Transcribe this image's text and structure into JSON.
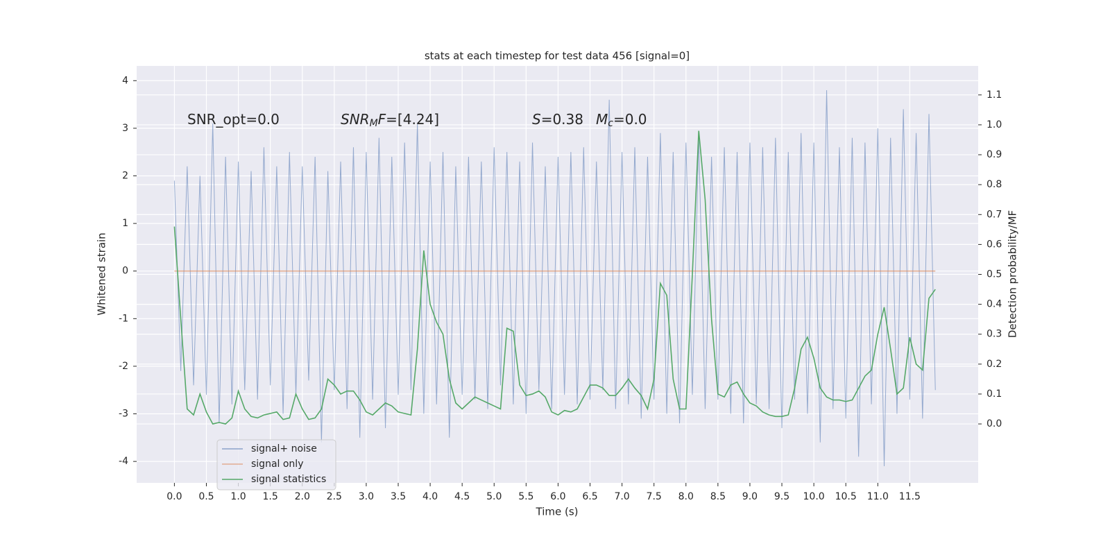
{
  "chart_data": {
    "type": "line",
    "title": "stats at each timestep for test data 456 [signal=0]",
    "xlabel": "Time (s)",
    "ylabel": "Whitened strain",
    "y2label": "Detection probability/MF",
    "annotations": [
      [
        {
          "text": "SNR_opt=0.0"
        }
      ],
      [
        {
          "text": "SNR",
          "style": "italic"
        },
        {
          "text": "M",
          "style": "italic-sub"
        },
        {
          "text": "F",
          "style": "italic"
        },
        {
          "text": "=[4.24]"
        }
      ],
      [
        {
          "text": "S",
          "style": "italic"
        },
        {
          "text": "=0.38"
        }
      ],
      [
        {
          "text": "M",
          "style": "italic"
        },
        {
          "text": "c",
          "style": "italic-sub"
        },
        {
          "text": "=0.0"
        }
      ]
    ],
    "xlim": [
      -0.59,
      12.57
    ],
    "ylim": [
      -4.45,
      4.31
    ],
    "y2lim": [
      -0.197,
      1.197
    ],
    "xticks": [
      {
        "value": 0,
        "label": "0.0"
      },
      0.5,
      {
        "value": 1,
        "label": "1.0"
      },
      1.5,
      {
        "value": 2,
        "label": "2.0"
      },
      2.5,
      {
        "value": 3,
        "label": "3.0"
      },
      3.5,
      {
        "value": 4,
        "label": "4.0"
      },
      4.5,
      {
        "value": 5,
        "label": "5.0"
      },
      5.5,
      {
        "value": 6,
        "label": "6.0"
      },
      6.5,
      {
        "value": 7,
        "label": "7.0"
      },
      7.5,
      {
        "value": 8,
        "label": "8.0"
      },
      8.5,
      {
        "value": 9,
        "label": "9.0"
      },
      9.5,
      {
        "value": 10,
        "label": "10.0"
      },
      10.5,
      {
        "value": 11,
        "label": "11.0"
      },
      11.5
    ],
    "yticks": [
      -4,
      -3,
      -2,
      -1,
      0,
      1,
      2,
      3,
      4
    ],
    "y2ticks": [
      {
        "value": 0,
        "label": "0.0"
      },
      0.1,
      0.2,
      0.3,
      0.4,
      0.5,
      0.6,
      0.7,
      0.8,
      0.9,
      {
        "value": 1,
        "label": "1.0"
      },
      1.1
    ],
    "grid": true,
    "legend": "lower left",
    "x": [
      0.0,
      0.1,
      0.2,
      0.3,
      0.4,
      0.5,
      0.6,
      0.7,
      0.8,
      0.9,
      1.0,
      1.1,
      1.2,
      1.3,
      1.4,
      1.5,
      1.6,
      1.7,
      1.8,
      1.9,
      2.0,
      2.1,
      2.2,
      2.3,
      2.4,
      2.5,
      2.6,
      2.7,
      2.8,
      2.9,
      3.0,
      3.1,
      3.2,
      3.3,
      3.4,
      3.5,
      3.6,
      3.7,
      3.8,
      3.9,
      4.0,
      4.1,
      4.2,
      4.3,
      4.4,
      4.5,
      4.6,
      4.7,
      4.8,
      4.9,
      5.0,
      5.1,
      5.2,
      5.3,
      5.4,
      5.5,
      5.6,
      5.7,
      5.8,
      5.9,
      6.0,
      6.1,
      6.2,
      6.3,
      6.4,
      6.5,
      6.6,
      6.7,
      6.8,
      6.9,
      7.0,
      7.1,
      7.2,
      7.3,
      7.4,
      7.5,
      7.6,
      7.7,
      7.8,
      7.9,
      8.0,
      8.1,
      8.2,
      8.3,
      8.4,
      8.5,
      8.6,
      8.7,
      8.8,
      8.9,
      9.0,
      9.1,
      9.2,
      9.3,
      9.4,
      9.5,
      9.6,
      9.7,
      9.8,
      9.9,
      10.0,
      10.1,
      10.2,
      10.3,
      10.4,
      10.5,
      10.6,
      10.7,
      10.8,
      10.9,
      11.0,
      11.1,
      11.2,
      11.3,
      11.4,
      11.5,
      11.6,
      11.7,
      11.8,
      11.9
    ],
    "series": [
      {
        "name": "signal+ noise",
        "color": "#4c72b0",
        "values": [
          1.9,
          -2.1,
          2.2,
          -2.4,
          2.0,
          -2.6,
          3.1,
          -3.2,
          2.4,
          -2.8,
          2.3,
          -2.5,
          2.1,
          -2.7,
          2.6,
          -2.4,
          2.2,
          -3.0,
          2.5,
          -2.6,
          2.2,
          -2.3,
          2.4,
          -3.6,
          2.1,
          -2.5,
          2.3,
          -2.9,
          2.6,
          -3.5,
          2.5,
          -2.7,
          2.8,
          -3.3,
          2.4,
          -2.6,
          2.7,
          -2.5,
          3.1,
          -3.0,
          2.3,
          -2.8,
          2.5,
          -3.5,
          2.2,
          -2.6,
          2.4,
          -2.7,
          2.3,
          -2.9,
          2.6,
          -2.4,
          2.5,
          -2.8,
          2.3,
          -3.0,
          2.7,
          -2.5,
          2.2,
          -2.9,
          2.4,
          -2.6,
          2.5,
          -2.8,
          2.6,
          -2.7,
          2.3,
          -2.5,
          3.6,
          -2.9,
          2.5,
          -2.8,
          2.6,
          -3.1,
          2.4,
          -2.7,
          2.9,
          -3.0,
          2.5,
          -3.2,
          2.7,
          -2.6,
          2.8,
          -2.9,
          2.4,
          -2.7,
          2.6,
          -3.0,
          2.5,
          -3.2,
          2.7,
          -2.8,
          2.6,
          -2.9,
          2.8,
          -3.3,
          2.5,
          -2.7,
          2.9,
          -3.0,
          2.7,
          -3.6,
          3.8,
          -2.9,
          2.6,
          -3.1,
          2.8,
          -3.9,
          2.7,
          -2.8,
          3.0,
          -4.1,
          2.8,
          -3.0,
          3.4,
          -2.7,
          2.9,
          -3.1,
          3.3,
          -2.5
        ]
      },
      {
        "name": "signal only",
        "color": "#dd8452",
        "values": [
          0,
          0,
          0,
          0,
          0,
          0,
          0,
          0,
          0,
          0,
          0,
          0,
          0,
          0,
          0,
          0,
          0,
          0,
          0,
          0,
          0,
          0,
          0,
          0,
          0,
          0,
          0,
          0,
          0,
          0,
          0,
          0,
          0,
          0,
          0,
          0,
          0,
          0,
          0,
          0,
          0,
          0,
          0,
          0,
          0,
          0,
          0,
          0,
          0,
          0,
          0,
          0,
          0,
          0,
          0,
          0,
          0,
          0,
          0,
          0,
          0,
          0,
          0,
          0,
          0,
          0,
          0,
          0,
          0,
          0,
          0,
          0,
          0,
          0,
          0,
          0,
          0,
          0,
          0,
          0,
          0,
          0,
          0,
          0,
          0,
          0,
          0,
          0,
          0,
          0,
          0,
          0,
          0,
          0,
          0,
          0,
          0,
          0,
          0,
          0,
          0,
          0,
          0,
          0,
          0,
          0,
          0,
          0,
          0,
          0,
          0,
          0,
          0,
          0,
          0,
          0,
          0,
          0,
          0,
          0
        ]
      },
      {
        "name": "signal statistics",
        "color": "#55a868",
        "axis": "y2",
        "values": [
          0.66,
          0.35,
          0.05,
          0.03,
          0.1,
          0.04,
          0.0,
          0.005,
          0.0,
          0.02,
          0.11,
          0.05,
          0.025,
          0.02,
          0.03,
          0.035,
          0.04,
          0.015,
          0.02,
          0.1,
          0.05,
          0.015,
          0.02,
          0.05,
          0.15,
          0.13,
          0.1,
          0.11,
          0.11,
          0.08,
          0.04,
          0.03,
          0.05,
          0.07,
          0.06,
          0.04,
          0.035,
          0.03,
          0.25,
          0.58,
          0.4,
          0.34,
          0.3,
          0.15,
          0.07,
          0.05,
          0.07,
          0.09,
          0.08,
          0.07,
          0.06,
          0.05,
          0.32,
          0.31,
          0.13,
          0.095,
          0.1,
          0.11,
          0.09,
          0.04,
          0.03,
          0.045,
          0.04,
          0.05,
          0.09,
          0.13,
          0.13,
          0.12,
          0.095,
          0.095,
          0.12,
          0.15,
          0.12,
          0.095,
          0.05,
          0.15,
          0.47,
          0.43,
          0.15,
          0.05,
          0.05,
          0.5,
          0.98,
          0.75,
          0.35,
          0.1,
          0.09,
          0.13,
          0.14,
          0.1,
          0.07,
          0.06,
          0.04,
          0.03,
          0.025,
          0.025,
          0.03,
          0.12,
          0.25,
          0.29,
          0.22,
          0.12,
          0.09,
          0.08,
          0.08,
          0.075,
          0.08,
          0.12,
          0.16,
          0.18,
          0.3,
          0.39,
          0.25,
          0.1,
          0.12,
          0.29,
          0.2,
          0.18,
          0.42,
          0.45
        ]
      }
    ]
  }
}
